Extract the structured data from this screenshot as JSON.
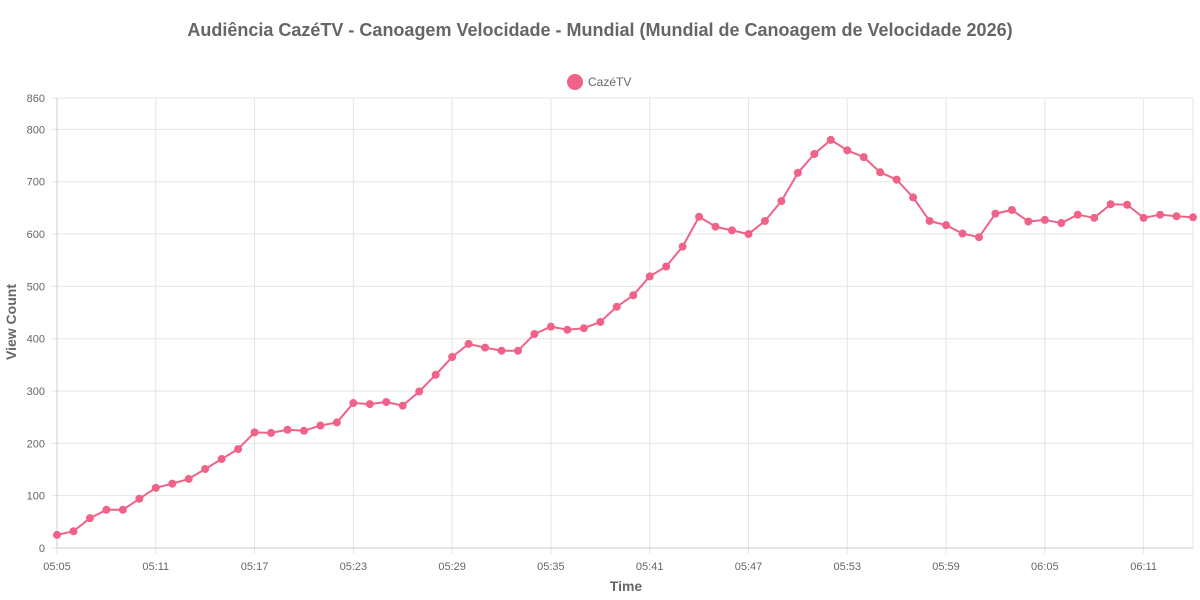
{
  "chart_data": {
    "type": "line",
    "title": "Audiência CazéTV - Canoagem Velocidade - Mundial (Mundial de Canoagem de Velocidade 2026)",
    "xlabel": "Time",
    "ylabel": "View Count",
    "ylim": [
      0,
      860
    ],
    "yticks": [
      0,
      100,
      200,
      300,
      400,
      500,
      600,
      700,
      800,
      860
    ],
    "xticks": [
      "05:05",
      "05:11",
      "05:17",
      "05:23",
      "05:29",
      "05:35",
      "05:41",
      "05:47",
      "05:53",
      "05:59",
      "06:05",
      "06:11"
    ],
    "grid": true,
    "legend_position": "top-center",
    "series_color": "#f06287",
    "series": [
      {
        "name": "CazéTV",
        "x": [
          "05:05",
          "05:06",
          "05:07",
          "05:08",
          "05:09",
          "05:10",
          "05:11",
          "05:12",
          "05:13",
          "05:14",
          "05:15",
          "05:16",
          "05:17",
          "05:18",
          "05:19",
          "05:20",
          "05:21",
          "05:22",
          "05:23",
          "05:24",
          "05:25",
          "05:26",
          "05:27",
          "05:28",
          "05:29",
          "05:30",
          "05:31",
          "05:32",
          "05:33",
          "05:34",
          "05:35",
          "05:36",
          "05:37",
          "05:38",
          "05:39",
          "05:40",
          "05:41",
          "05:42",
          "05:43",
          "05:44",
          "05:45",
          "05:46",
          "05:47",
          "05:48",
          "05:49",
          "05:50",
          "05:51",
          "05:52",
          "05:53",
          "05:54",
          "05:55",
          "05:56",
          "05:57",
          "05:58",
          "05:59",
          "06:00",
          "06:01",
          "06:02",
          "06:03",
          "06:04",
          "06:05",
          "06:06",
          "06:07",
          "06:08",
          "06:09",
          "06:10",
          "06:11",
          "06:12",
          "06:13",
          "06:14"
        ],
        "values": [
          25,
          32,
          57,
          73,
          73,
          94,
          115,
          123,
          132,
          151,
          170,
          189,
          221,
          220,
          226,
          224,
          234,
          240,
          277,
          275,
          279,
          272,
          299,
          331,
          365,
          390,
          383,
          377,
          377,
          409,
          423,
          417,
          420,
          432,
          461,
          483,
          519,
          538,
          576,
          633,
          614,
          607,
          600,
          625,
          663,
          717,
          753,
          780,
          760,
          747,
          718,
          704,
          670,
          625,
          617,
          601,
          594,
          639,
          646,
          624,
          627,
          621,
          637,
          631,
          657,
          656,
          631,
          637,
          634,
          632
        ]
      }
    ]
  }
}
